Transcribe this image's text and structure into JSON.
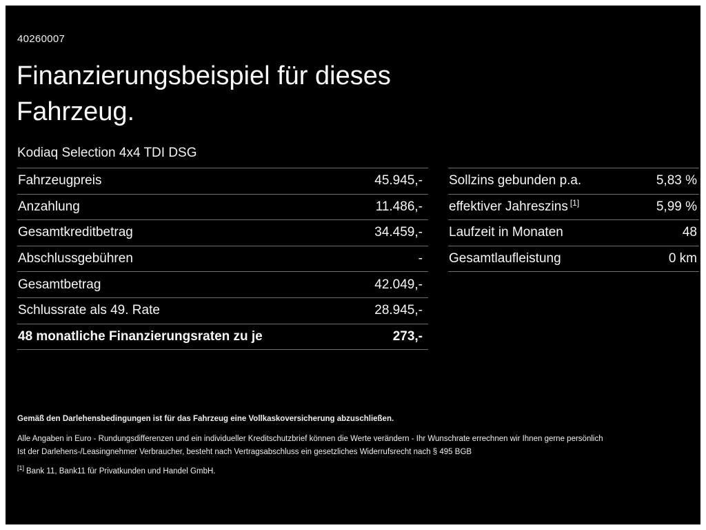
{
  "page": {
    "id_number": "40260007",
    "title_line1": "Finanzierungsbeispiel für dieses",
    "title_line2": "Fahrzeug.",
    "subtitle": "Kodiaq Selection 4x4 TDI DSG"
  },
  "colors": {
    "background": "#000000",
    "text": "#f7f7f7",
    "divider": "#6e6e6e",
    "page_frame": "#ffffff"
  },
  "left_table": {
    "rows": [
      {
        "label": "Fahrzeugpreis",
        "value": "45.945,-"
      },
      {
        "label": "Anzahlung",
        "value": "11.486,-"
      },
      {
        "label": "Gesamtkreditbetrag",
        "value": "34.459,-"
      },
      {
        "label": "Abschlussgebühren",
        "value": "-"
      },
      {
        "label": "Gesamtbetrag",
        "value": "42.049,-"
      },
      {
        "label": "Schlussrate als 49. Rate",
        "value": "28.945,-"
      },
      {
        "label": "48 monatliche Finanzierungsraten zu je",
        "value": "273,-"
      }
    ]
  },
  "right_table": {
    "rows": [
      {
        "label": "Sollzins gebunden p.a.",
        "sup": "",
        "value": "5,83 %"
      },
      {
        "label": "effektiver Jahreszins",
        "sup": "[1]",
        "value": "5,99 %"
      },
      {
        "label": "Laufzeit in Monaten",
        "sup": "",
        "value": "48"
      },
      {
        "label": "Gesamtlaufleistung",
        "sup": "",
        "value": "0 km"
      }
    ]
  },
  "footer": {
    "line1": "Gemäß den Darlehensbedingungen ist für das Fahrzeug eine Vollkaskoversicherung abzuschließen.",
    "line2": "Alle Angaben in Euro - Rundungsdifferenzen und ein individueller Kreditschutzbrief können die Werte verändern - Ihr Wunschrate errechnen wir Ihnen gerne persönlich",
    "line3": "Ist der Darlehens-/Leasingnehmer Verbraucher, besteht nach Vertragsabschluss ein gesetzliches Widerrufsrecht nach § 495 BGB",
    "footnote_marker": "[1]",
    "footnote_text": "Bank 11, Bank11 für Privatkunden und Handel GmbH."
  }
}
